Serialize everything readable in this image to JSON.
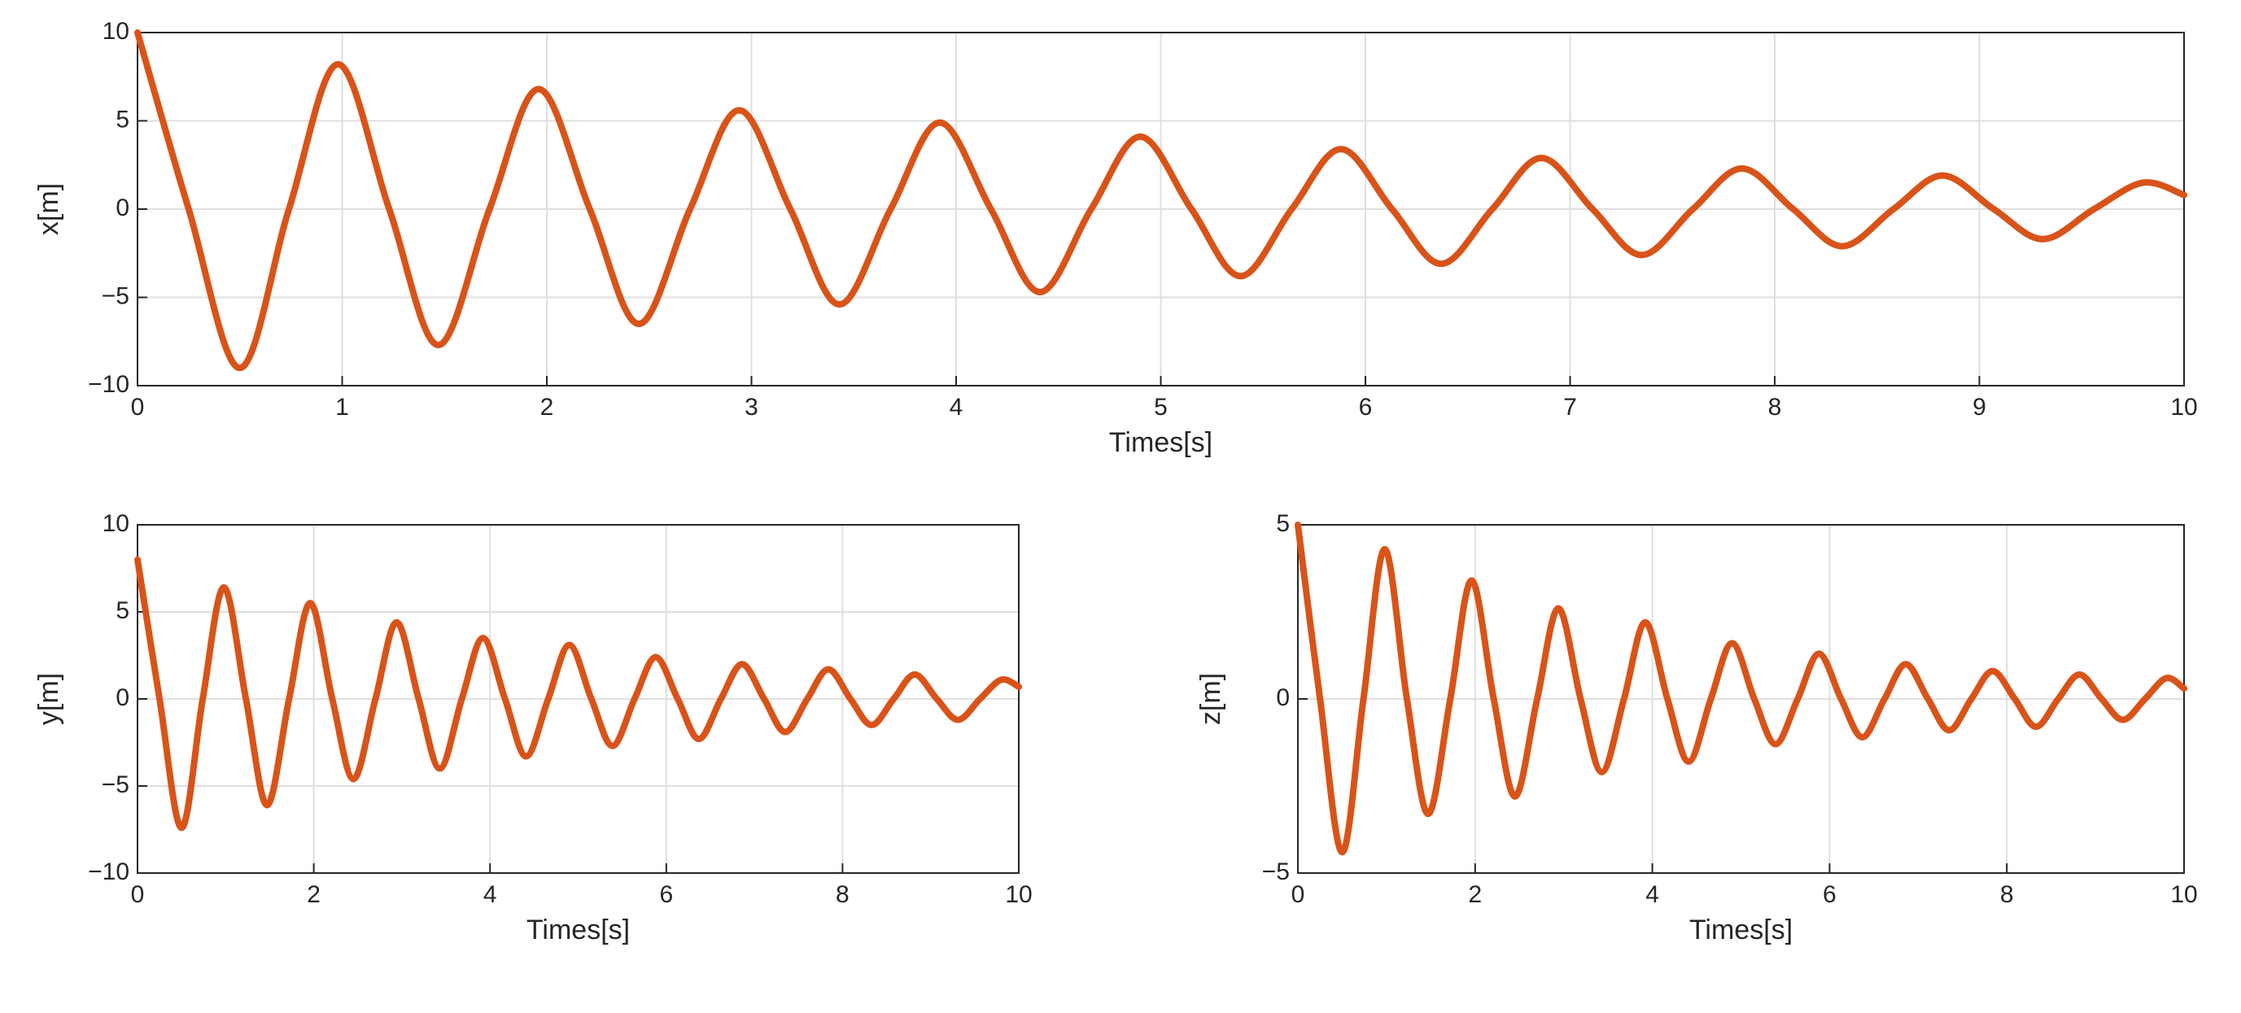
{
  "chart_data": [
    {
      "type": "line",
      "xlabel": "Times[s]",
      "ylabel": "x[m]",
      "color": "#D95319",
      "grid": true,
      "xlim": [
        0,
        10
      ],
      "ylim": [
        -10,
        10
      ],
      "xticks": [
        0,
        1,
        2,
        3,
        4,
        5,
        6,
        7,
        8,
        9,
        10
      ],
      "yticks": [
        {
          "value": -10,
          "label": "−10"
        },
        {
          "value": -5,
          "label": "−5"
        },
        0,
        5,
        10
      ],
      "x": [
        0,
        0.25,
        0.5,
        0.74,
        0.98,
        1.23,
        1.47,
        1.72,
        1.96,
        2.21,
        2.45,
        2.7,
        2.94,
        3.19,
        3.43,
        3.68,
        3.92,
        4.17,
        4.41,
        4.66,
        4.9,
        5.15,
        5.39,
        5.64,
        5.88,
        6.13,
        6.37,
        6.62,
        6.86,
        7.11,
        7.35,
        7.6,
        7.84,
        8.09,
        8.33,
        8.58,
        8.82,
        9.07,
        9.31,
        9.56,
        9.8,
        10
      ],
      "values": [
        10,
        0,
        -9,
        0,
        8.2,
        0,
        -7.7,
        0,
        6.8,
        0,
        -6.5,
        0,
        5.6,
        0,
        -5.4,
        0,
        4.9,
        0,
        -4.7,
        0,
        4.1,
        0,
        -3.8,
        0,
        3.4,
        0,
        -3.1,
        0,
        2.9,
        0,
        -2.6,
        0,
        2.3,
        0,
        -2.1,
        0,
        1.9,
        0,
        -1.7,
        0,
        1.5,
        0.8
      ]
    },
    {
      "type": "line",
      "xlabel": "Times[s]",
      "ylabel": "y[m]",
      "color": "#D95319",
      "grid": true,
      "xlim": [
        0,
        10
      ],
      "ylim": [
        -10,
        10
      ],
      "xticks": [
        0,
        2,
        4,
        6,
        8,
        10
      ],
      "yticks": [
        {
          "value": -10,
          "label": "−10"
        },
        {
          "value": -5,
          "label": "−5"
        },
        0,
        5,
        10
      ],
      "x": [
        0,
        0.25,
        0.5,
        0.74,
        0.98,
        1.23,
        1.47,
        1.72,
        1.96,
        2.21,
        2.45,
        2.7,
        2.94,
        3.19,
        3.43,
        3.68,
        3.92,
        4.17,
        4.41,
        4.66,
        4.9,
        5.15,
        5.39,
        5.64,
        5.88,
        6.13,
        6.37,
        6.62,
        6.86,
        7.11,
        7.35,
        7.6,
        7.84,
        8.09,
        8.33,
        8.58,
        8.82,
        9.07,
        9.31,
        9.56,
        9.8,
        10
      ],
      "values": [
        8,
        0,
        -7.4,
        0,
        6.4,
        0,
        -6.1,
        0,
        5.5,
        0,
        -4.6,
        0,
        4.4,
        0,
        -4,
        0,
        3.5,
        0,
        -3.3,
        0,
        3.1,
        0,
        -2.7,
        0,
        2.4,
        0,
        -2.3,
        0,
        2,
        0,
        -1.9,
        0,
        1.7,
        0,
        -1.5,
        0,
        1.4,
        0,
        -1.2,
        0,
        1.1,
        0.7
      ]
    },
    {
      "type": "line",
      "xlabel": "Times[s]",
      "ylabel": "z[m]",
      "color": "#D95319",
      "grid": true,
      "xlim": [
        0,
        10
      ],
      "ylim": [
        -5,
        5
      ],
      "xticks": [
        0,
        2,
        4,
        6,
        8,
        10
      ],
      "yticks": [
        {
          "value": -5,
          "label": "−5"
        },
        0,
        5
      ],
      "x": [
        0,
        0.25,
        0.5,
        0.74,
        0.98,
        1.23,
        1.47,
        1.72,
        1.96,
        2.21,
        2.45,
        2.7,
        2.94,
        3.19,
        3.43,
        3.68,
        3.92,
        4.17,
        4.41,
        4.66,
        4.9,
        5.15,
        5.39,
        5.64,
        5.88,
        6.13,
        6.37,
        6.62,
        6.86,
        7.11,
        7.35,
        7.6,
        7.84,
        8.09,
        8.33,
        8.58,
        8.82,
        9.07,
        9.31,
        9.56,
        9.8,
        10
      ],
      "values": [
        5,
        0,
        -4.4,
        0,
        4.3,
        0,
        -3.3,
        0,
        3.4,
        0,
        -2.8,
        0,
        2.6,
        0,
        -2.1,
        0,
        2.2,
        0,
        -1.8,
        0,
        1.6,
        0,
        -1.3,
        0,
        1.3,
        0,
        -1.1,
        0,
        1,
        0,
        -0.9,
        0,
        0.8,
        0,
        -0.8,
        0,
        0.7,
        0,
        -0.6,
        0,
        0.6,
        0.3
      ]
    }
  ]
}
